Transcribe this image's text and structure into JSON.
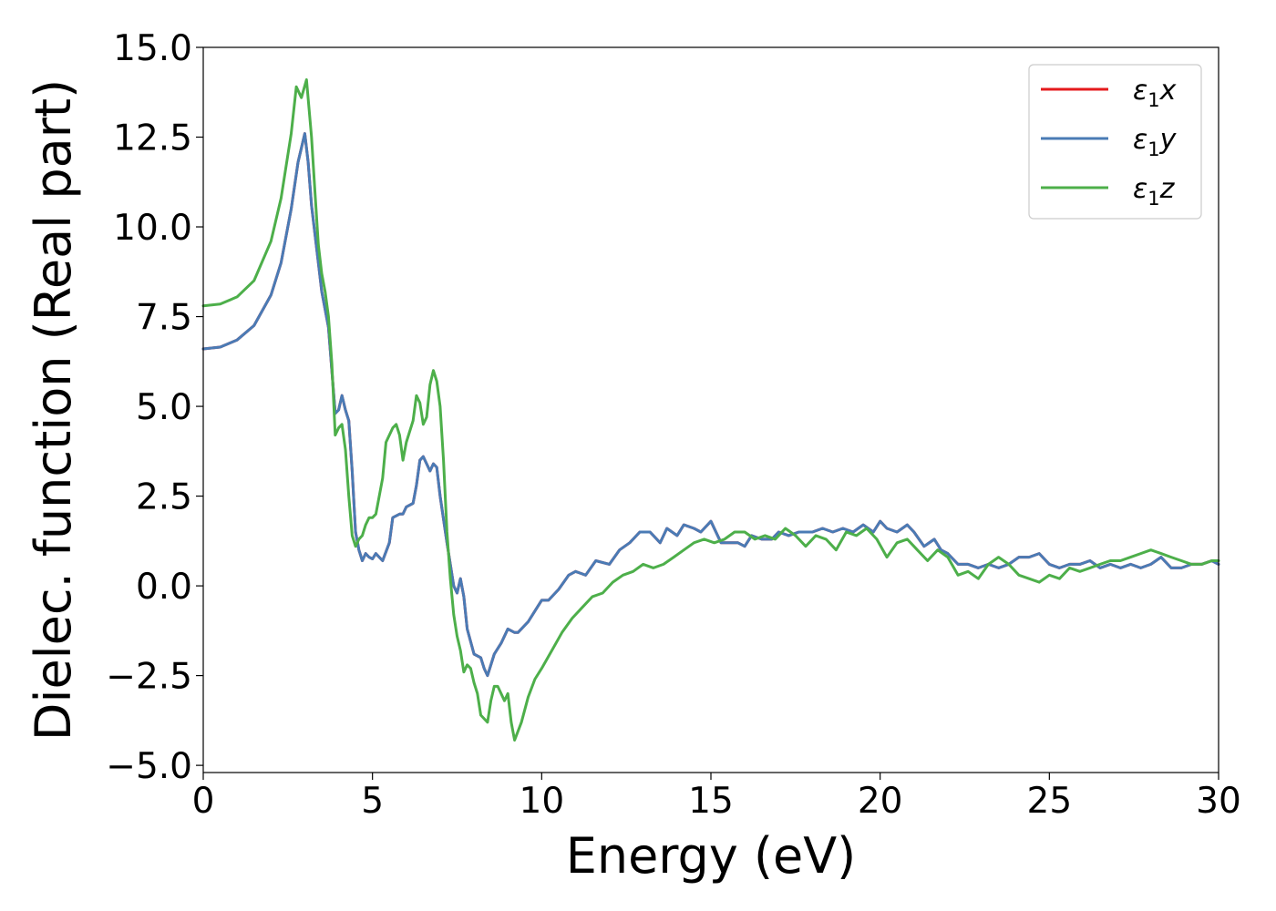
{
  "chart_data": {
    "type": "line",
    "xlabel": "Energy (eV)",
    "ylabel": "Dielec. function (Real part)",
    "xlim": [
      0,
      30
    ],
    "ylim": [
      -5.2,
      15
    ],
    "xticks": [
      0,
      5,
      10,
      15,
      20,
      25,
      30
    ],
    "xtick_labels": [
      "0",
      "5",
      "10",
      "15",
      "20",
      "25",
      "30"
    ],
    "yticks": [
      -5,
      -2.5,
      0,
      2.5,
      5,
      7.5,
      10,
      12.5,
      15
    ],
    "ytick_labels": [
      "−5.0",
      "−2.5",
      "0.0",
      "2.5",
      "5.0",
      "7.5",
      "10.0",
      "12.5",
      "15.0"
    ],
    "grid": false,
    "legend_position": "top-right",
    "series": [
      {
        "name": "ε1x",
        "legend": {
          "base": "ε",
          "sub": "1",
          "var": "x"
        },
        "color": "#e41a1c",
        "x": [
          0,
          0.5,
          1.0,
          1.5,
          2.0,
          2.3,
          2.6,
          2.8,
          3.0,
          3.1,
          3.2,
          3.4,
          3.5,
          3.7,
          3.8,
          3.9,
          4.0,
          4.1,
          4.2,
          4.3,
          4.4,
          4.5,
          4.6,
          4.7,
          4.8,
          4.9,
          5.0,
          5.1,
          5.2,
          5.3,
          5.5,
          5.6,
          5.8,
          5.9,
          6.0,
          6.2,
          6.3,
          6.4,
          6.5,
          6.6,
          6.7,
          6.8,
          6.9,
          7.0,
          7.2,
          7.4,
          7.5,
          7.6,
          7.7,
          7.8,
          8.0,
          8.2,
          8.3,
          8.4,
          8.6,
          8.8,
          8.9,
          9.0,
          9.2,
          9.3,
          9.6,
          9.8,
          10.0,
          10.2,
          10.5,
          10.8,
          11.0,
          11.3,
          11.6,
          12.0,
          12.3,
          12.6,
          12.9,
          13.2,
          13.5,
          13.7,
          14.0,
          14.2,
          14.5,
          14.7,
          15.0,
          15.3,
          15.5,
          15.8,
          16.0,
          16.2,
          16.5,
          16.8,
          17.0,
          17.3,
          17.6,
          18.0,
          18.3,
          18.6,
          18.9,
          19.2,
          19.5,
          19.8,
          20.0,
          20.2,
          20.5,
          20.8,
          21.0,
          21.3,
          21.6,
          21.8,
          22.0,
          22.3,
          22.6,
          22.9,
          23.2,
          23.5,
          23.8,
          24.1,
          24.4,
          24.7,
          25.0,
          25.3,
          25.6,
          25.9,
          26.2,
          26.5,
          26.8,
          27.1,
          27.4,
          27.7,
          28.0,
          28.3,
          28.6,
          28.9,
          29.2,
          29.5,
          29.8,
          30.0
        ],
        "y": [
          6.6,
          6.65,
          6.85,
          7.25,
          8.1,
          9.0,
          10.5,
          11.8,
          12.6,
          11.8,
          10.6,
          9.0,
          8.2,
          7.2,
          6.0,
          4.8,
          4.9,
          5.3,
          4.9,
          4.6,
          3.2,
          1.5,
          1.0,
          0.7,
          0.9,
          0.8,
          0.75,
          0.9,
          0.8,
          0.7,
          1.2,
          1.9,
          2.0,
          2.0,
          2.2,
          2.3,
          2.8,
          3.5,
          3.6,
          3.4,
          3.2,
          3.4,
          3.3,
          2.5,
          1.2,
          0.0,
          -0.2,
          0.2,
          -0.3,
          -1.2,
          -1.9,
          -2.0,
          -2.3,
          -2.5,
          -1.9,
          -1.6,
          -1.4,
          -1.2,
          -1.3,
          -1.3,
          -1.0,
          -0.7,
          -0.4,
          -0.4,
          -0.1,
          0.3,
          0.4,
          0.3,
          0.7,
          0.6,
          1.0,
          1.2,
          1.5,
          1.5,
          1.2,
          1.6,
          1.4,
          1.7,
          1.6,
          1.5,
          1.8,
          1.2,
          1.2,
          1.2,
          1.1,
          1.4,
          1.3,
          1.3,
          1.5,
          1.4,
          1.5,
          1.5,
          1.6,
          1.5,
          1.6,
          1.5,
          1.7,
          1.5,
          1.8,
          1.6,
          1.5,
          1.7,
          1.5,
          1.1,
          1.3,
          1.0,
          0.9,
          0.6,
          0.6,
          0.5,
          0.6,
          0.5,
          0.6,
          0.8,
          0.8,
          0.9,
          0.6,
          0.5,
          0.6,
          0.6,
          0.7,
          0.5,
          0.6,
          0.5,
          0.6,
          0.5,
          0.6,
          0.8,
          0.5,
          0.5,
          0.6,
          0.6,
          0.7,
          0.6
        ]
      },
      {
        "name": "ε1y",
        "legend": {
          "base": "ε",
          "sub": "1",
          "var": "y"
        },
        "color": "#4a7bb5",
        "x": [
          0,
          0.5,
          1.0,
          1.5,
          2.0,
          2.3,
          2.6,
          2.8,
          3.0,
          3.1,
          3.2,
          3.4,
          3.5,
          3.7,
          3.8,
          3.9,
          4.0,
          4.1,
          4.2,
          4.3,
          4.4,
          4.5,
          4.6,
          4.7,
          4.8,
          4.9,
          5.0,
          5.1,
          5.2,
          5.3,
          5.5,
          5.6,
          5.8,
          5.9,
          6.0,
          6.2,
          6.3,
          6.4,
          6.5,
          6.6,
          6.7,
          6.8,
          6.9,
          7.0,
          7.2,
          7.4,
          7.5,
          7.6,
          7.7,
          7.8,
          8.0,
          8.2,
          8.3,
          8.4,
          8.6,
          8.8,
          8.9,
          9.0,
          9.2,
          9.3,
          9.6,
          9.8,
          10.0,
          10.2,
          10.5,
          10.8,
          11.0,
          11.3,
          11.6,
          12.0,
          12.3,
          12.6,
          12.9,
          13.2,
          13.5,
          13.7,
          14.0,
          14.2,
          14.5,
          14.7,
          15.0,
          15.3,
          15.5,
          15.8,
          16.0,
          16.2,
          16.5,
          16.8,
          17.0,
          17.3,
          17.6,
          18.0,
          18.3,
          18.6,
          18.9,
          19.2,
          19.5,
          19.8,
          20.0,
          20.2,
          20.5,
          20.8,
          21.0,
          21.3,
          21.6,
          21.8,
          22.0,
          22.3,
          22.6,
          22.9,
          23.2,
          23.5,
          23.8,
          24.1,
          24.4,
          24.7,
          25.0,
          25.3,
          25.6,
          25.9,
          26.2,
          26.5,
          26.8,
          27.1,
          27.4,
          27.7,
          28.0,
          28.3,
          28.6,
          28.9,
          29.2,
          29.5,
          29.8,
          30.0
        ],
        "y": [
          6.6,
          6.65,
          6.85,
          7.25,
          8.1,
          9.0,
          10.5,
          11.8,
          12.6,
          11.8,
          10.6,
          9.0,
          8.2,
          7.2,
          6.0,
          4.8,
          4.9,
          5.3,
          4.9,
          4.6,
          3.2,
          1.5,
          1.0,
          0.7,
          0.9,
          0.8,
          0.75,
          0.9,
          0.8,
          0.7,
          1.2,
          1.9,
          2.0,
          2.0,
          2.2,
          2.3,
          2.8,
          3.5,
          3.6,
          3.4,
          3.2,
          3.4,
          3.3,
          2.5,
          1.2,
          0.0,
          -0.2,
          0.2,
          -0.3,
          -1.2,
          -1.9,
          -2.0,
          -2.3,
          -2.5,
          -1.9,
          -1.6,
          -1.4,
          -1.2,
          -1.3,
          -1.3,
          -1.0,
          -0.7,
          -0.4,
          -0.4,
          -0.1,
          0.3,
          0.4,
          0.3,
          0.7,
          0.6,
          1.0,
          1.2,
          1.5,
          1.5,
          1.2,
          1.6,
          1.4,
          1.7,
          1.6,
          1.5,
          1.8,
          1.2,
          1.2,
          1.2,
          1.1,
          1.4,
          1.3,
          1.3,
          1.5,
          1.4,
          1.5,
          1.5,
          1.6,
          1.5,
          1.6,
          1.5,
          1.7,
          1.5,
          1.8,
          1.6,
          1.5,
          1.7,
          1.5,
          1.1,
          1.3,
          1.0,
          0.9,
          0.6,
          0.6,
          0.5,
          0.6,
          0.5,
          0.6,
          0.8,
          0.8,
          0.9,
          0.6,
          0.5,
          0.6,
          0.6,
          0.7,
          0.5,
          0.6,
          0.5,
          0.6,
          0.5,
          0.6,
          0.8,
          0.5,
          0.5,
          0.6,
          0.6,
          0.7,
          0.6
        ]
      },
      {
        "name": "ε1z",
        "legend": {
          "base": "ε",
          "sub": "1",
          "var": "z"
        },
        "color": "#4daf4a",
        "x": [
          0,
          0.5,
          1.0,
          1.5,
          2.0,
          2.3,
          2.6,
          2.75,
          2.9,
          3.05,
          3.2,
          3.3,
          3.4,
          3.5,
          3.6,
          3.7,
          3.8,
          3.9,
          4.0,
          4.1,
          4.2,
          4.3,
          4.4,
          4.5,
          4.6,
          4.7,
          4.8,
          4.9,
          5.0,
          5.1,
          5.3,
          5.4,
          5.5,
          5.6,
          5.7,
          5.8,
          5.9,
          6.0,
          6.2,
          6.3,
          6.4,
          6.5,
          6.6,
          6.7,
          6.8,
          6.9,
          7.0,
          7.1,
          7.2,
          7.3,
          7.4,
          7.5,
          7.6,
          7.7,
          7.8,
          7.9,
          8.0,
          8.1,
          8.2,
          8.4,
          8.5,
          8.6,
          8.7,
          8.8,
          8.9,
          9.0,
          9.1,
          9.2,
          9.4,
          9.6,
          9.8,
          10.0,
          10.3,
          10.6,
          10.9,
          11.2,
          11.5,
          11.8,
          12.1,
          12.4,
          12.7,
          13.0,
          13.3,
          13.6,
          13.9,
          14.2,
          14.5,
          14.8,
          15.1,
          15.4,
          15.7,
          16.0,
          16.3,
          16.6,
          16.9,
          17.2,
          17.5,
          17.8,
          18.1,
          18.4,
          18.7,
          19.0,
          19.3,
          19.6,
          19.9,
          20.2,
          20.5,
          20.8,
          21.1,
          21.4,
          21.7,
          22.0,
          22.3,
          22.6,
          22.9,
          23.2,
          23.5,
          23.8,
          24.1,
          24.4,
          24.7,
          25.0,
          25.3,
          25.6,
          25.9,
          26.2,
          26.5,
          26.8,
          27.1,
          27.4,
          27.7,
          28.0,
          28.3,
          28.6,
          28.9,
          29.2,
          29.5,
          29.8,
          30.0
        ],
        "y": [
          7.8,
          7.85,
          8.05,
          8.5,
          9.6,
          10.8,
          12.6,
          13.9,
          13.6,
          14.1,
          12.5,
          11.0,
          9.5,
          8.7,
          8.2,
          7.5,
          6.2,
          4.2,
          4.4,
          4.5,
          3.8,
          2.5,
          1.4,
          1.1,
          1.3,
          1.4,
          1.7,
          1.9,
          1.9,
          2.0,
          3.0,
          4.0,
          4.2,
          4.4,
          4.5,
          4.2,
          3.5,
          4.0,
          4.6,
          5.3,
          5.1,
          4.5,
          4.7,
          5.6,
          6.0,
          5.7,
          5.0,
          3.5,
          1.5,
          0.2,
          -0.8,
          -1.4,
          -1.8,
          -2.4,
          -2.2,
          -2.3,
          -2.7,
          -3.0,
          -3.6,
          -3.8,
          -3.2,
          -2.8,
          -2.8,
          -3.0,
          -3.2,
          -3.0,
          -3.8,
          -4.3,
          -3.8,
          -3.1,
          -2.6,
          -2.3,
          -1.8,
          -1.3,
          -0.9,
          -0.6,
          -0.3,
          -0.2,
          0.1,
          0.3,
          0.4,
          0.6,
          0.5,
          0.6,
          0.8,
          1.0,
          1.2,
          1.3,
          1.2,
          1.3,
          1.5,
          1.5,
          1.3,
          1.4,
          1.3,
          1.6,
          1.4,
          1.1,
          1.4,
          1.3,
          1.0,
          1.5,
          1.4,
          1.6,
          1.3,
          0.8,
          1.2,
          1.3,
          1.0,
          0.7,
          1.0,
          0.8,
          0.3,
          0.4,
          0.2,
          0.6,
          0.8,
          0.6,
          0.3,
          0.2,
          0.1,
          0.3,
          0.2,
          0.5,
          0.4,
          0.5,
          0.6,
          0.7,
          0.7,
          0.8,
          0.9,
          1.0,
          0.9,
          0.8,
          0.7,
          0.6,
          0.6,
          0.7,
          0.7
        ]
      }
    ]
  }
}
